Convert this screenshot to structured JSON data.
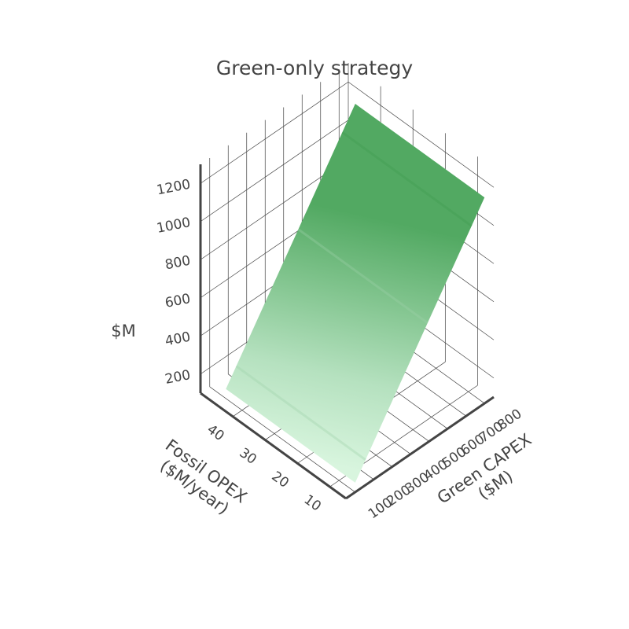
{
  "chart_data": {
    "type": "surface",
    "title": "Green-only strategy",
    "x_axis": {
      "label": "Green CAPEX",
      "label_line2": "($M)",
      "range": [
        50,
        850
      ],
      "ticks": [
        100,
        200,
        300,
        400,
        500,
        600,
        700,
        800
      ]
    },
    "y_axis": {
      "label": "Fossil OPEX",
      "label_line2": "($M/year)",
      "range": [
        5,
        50
      ],
      "ticks": [
        10,
        20,
        30,
        40
      ]
    },
    "z_axis": {
      "label": "$M",
      "range": [
        100,
        1300
      ],
      "ticks": [
        200,
        400,
        600,
        800,
        1000,
        1200
      ]
    },
    "surface": {
      "x": [
        100,
        800
      ],
      "y": [
        5,
        45
      ],
      "z": [
        [
          150,
          150
        ],
        [
          1180,
          1180
        ]
      ],
      "note_rows_index_x": true
    },
    "colorscale": [
      "#d9f5df",
      "#4fa860"
    ],
    "grid": true
  }
}
